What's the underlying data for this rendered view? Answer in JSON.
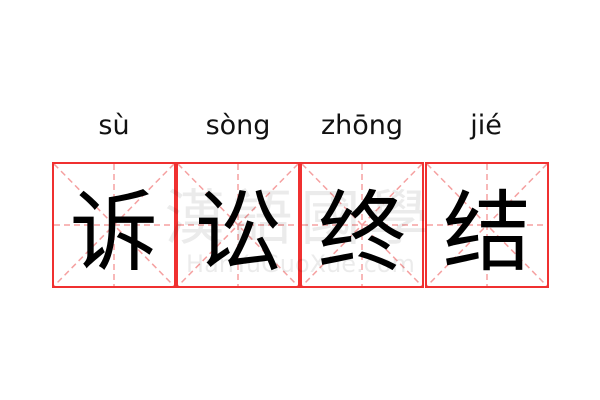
{
  "characters": [
    {
      "hanzi": "诉",
      "pinyin": "sù"
    },
    {
      "hanzi": "讼",
      "pinyin": "sòng"
    },
    {
      "hanzi": "终",
      "pinyin": "zhōng"
    },
    {
      "hanzi": "结",
      "pinyin": "jié"
    }
  ],
  "watermark": {
    "title": "漢語國學",
    "site": "HanYuGuoXue.com"
  },
  "colors": {
    "border": "#f03030",
    "guide": "#f5a0a0"
  }
}
